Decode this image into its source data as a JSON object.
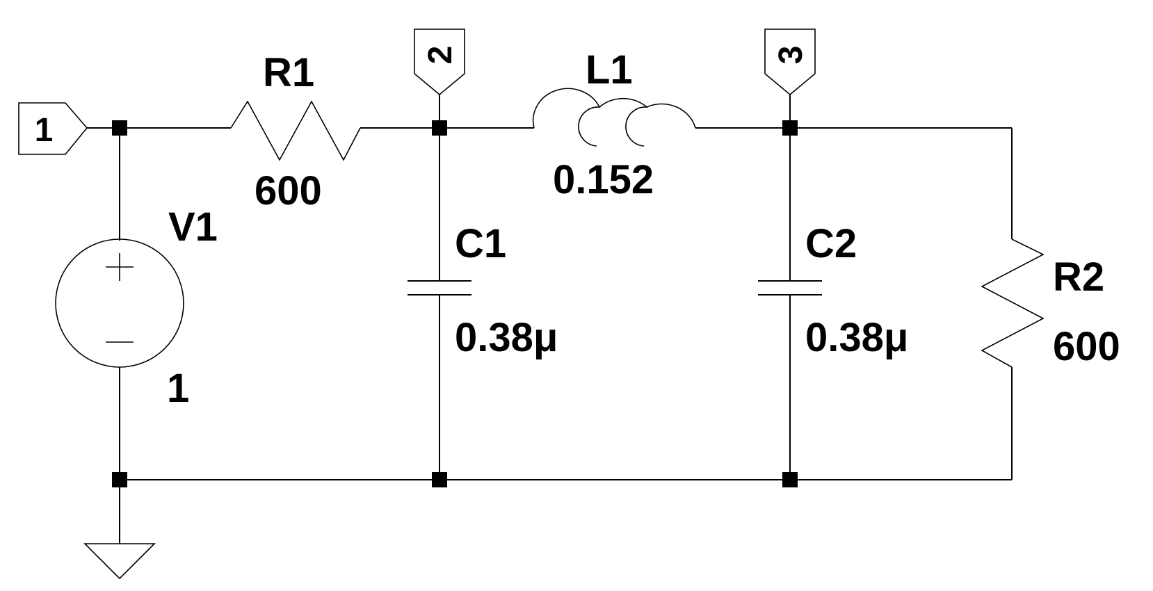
{
  "nets": {
    "n1": "1",
    "n2": "2",
    "n3": "3"
  },
  "components": {
    "V1": {
      "name": "V1",
      "value": "1"
    },
    "R1": {
      "name": "R1",
      "value": "600"
    },
    "L1": {
      "name": "L1",
      "value": "0.152"
    },
    "C1": {
      "name": "C1",
      "value": "0.38μ"
    },
    "C2": {
      "name": "C2",
      "value": "0.38μ"
    },
    "R2": {
      "name": "R2",
      "value": "600"
    }
  },
  "colors": {
    "wire": "#000000",
    "background": "#ffffff"
  }
}
